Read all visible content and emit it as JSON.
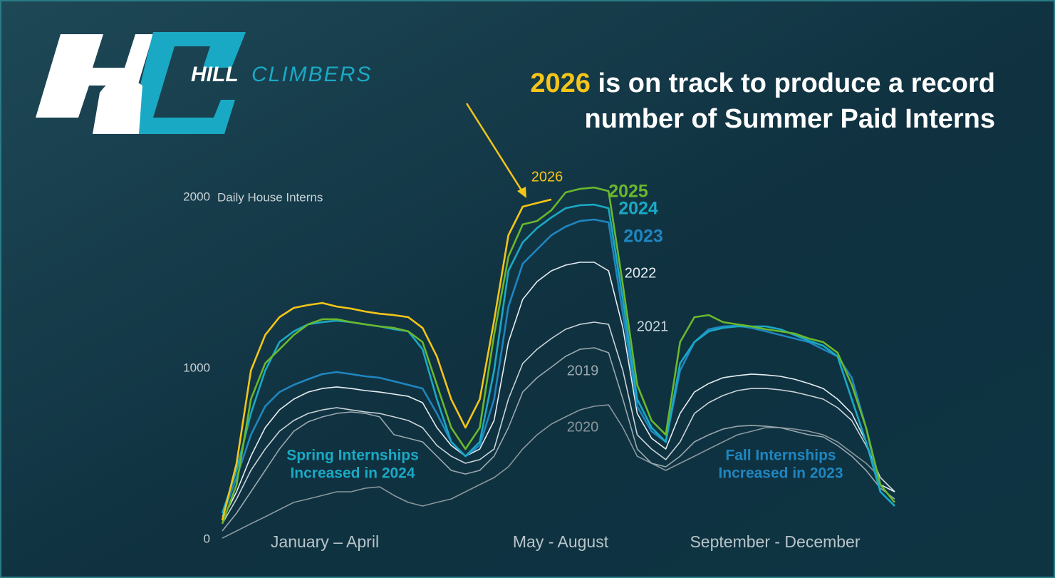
{
  "brand": {
    "hill": "HILL",
    "climbers": "CLIMBERS"
  },
  "chart_data": {
    "type": "line",
    "title": {
      "highlight": "2026",
      "line1": "is on track to produce a record",
      "line2": "number of Summer Paid Interns"
    },
    "y_label": "Daily House Interns",
    "ylim": [
      0,
      2000
    ],
    "yticks": [
      0,
      1000,
      2000
    ],
    "grid": false,
    "period_labels": [
      "January – April",
      "May - August",
      "September - December"
    ],
    "annotations": [
      {
        "lines": [
          "Spring Internships",
          "Increased in 2024"
        ],
        "color": "#1aa9c4"
      },
      {
        "lines": [
          "Fall Internships",
          "Increased in 2023"
        ],
        "color": "#1f86c0"
      }
    ],
    "series": [
      {
        "name": "2020",
        "color": "#8a979d",
        "values": [
          8,
          50,
          92,
          133,
          175,
          217,
          237,
          258,
          279,
          279,
          300,
          308,
          258,
          217,
          196,
          217,
          237,
          279,
          321,
          362,
          425,
          529,
          612,
          675,
          717,
          758,
          779,
          787,
          654,
          487,
          446,
          404,
          446,
          487,
          529,
          571,
          612,
          633,
          654,
          654,
          646,
          633,
          612,
          571,
          508,
          446,
          362,
          279
        ]
      },
      {
        "name": "2019",
        "color": "#9aa8ae",
        "values": [
          50,
          154,
          279,
          404,
          529,
          633,
          688,
          717,
          737,
          746,
          737,
          717,
          613,
          592,
          571,
          487,
          404,
          383,
          404,
          487,
          654,
          862,
          946,
          1008,
          1071,
          1112,
          1121,
          1092,
          821,
          529,
          446,
          425,
          487,
          571,
          612,
          646,
          662,
          667,
          662,
          654,
          633,
          612,
          600,
          550,
          487,
          404,
          300,
          237
        ]
      },
      {
        "name": "2021",
        "color": "#c9d3d8",
        "values": [
          92,
          237,
          404,
          529,
          633,
          696,
          737,
          758,
          771,
          758,
          746,
          737,
          717,
          696,
          654,
          550,
          487,
          446,
          467,
          529,
          821,
          1029,
          1112,
          1175,
          1229,
          1258,
          1271,
          1258,
          987,
          612,
          529,
          467,
          571,
          737,
          800,
          842,
          871,
          883,
          883,
          875,
          862,
          842,
          821,
          771,
          696,
          550,
          362,
          279
        ]
      },
      {
        "name": "2022",
        "color": "#e6eef2",
        "values": [
          112,
          279,
          487,
          654,
          758,
          821,
          862,
          883,
          892,
          883,
          871,
          862,
          850,
          837,
          800,
          654,
          550,
          487,
          529,
          696,
          1154,
          1404,
          1508,
          1571,
          1604,
          1621,
          1621,
          1571,
          1237,
          737,
          592,
          529,
          737,
          862,
          912,
          946,
          958,
          967,
          962,
          954,
          937,
          912,
          883,
          821,
          737,
          571,
          321,
          279
        ]
      },
      {
        "name": "2023",
        "color": "#1f86c0",
        "values": [
          133,
          362,
          612,
          779,
          862,
          904,
          937,
          967,
          979,
          967,
          954,
          946,
          925,
          904,
          883,
          737,
          571,
          487,
          550,
          820,
          1362,
          1612,
          1696,
          1779,
          1829,
          1862,
          1871,
          1854,
          1321,
          779,
          633,
          571,
          988,
          1154,
          1229,
          1246,
          1250,
          1237,
          1217,
          1196,
          1175,
          1154,
          1112,
          1071,
          946,
          654,
          279,
          196
        ]
      },
      {
        "name": "2024",
        "color": "#1aa9c4",
        "values": [
          154,
          404,
          737,
          988,
          1154,
          1217,
          1258,
          1271,
          1279,
          1271,
          1258,
          1246,
          1229,
          1217,
          1112,
          820,
          571,
          487,
          571,
          988,
          1571,
          1737,
          1821,
          1883,
          1937,
          1954,
          1958,
          1937,
          1404,
          820,
          654,
          571,
          1030,
          1154,
          1217,
          1237,
          1246,
          1246,
          1246,
          1229,
          1196,
          1162,
          1133,
          1071,
          820,
          571,
          279,
          196
        ]
      },
      {
        "name": "2025",
        "color": "#6ab82c",
        "values": [
          92,
          320,
          820,
          1030,
          1112,
          1196,
          1258,
          1288,
          1288,
          1271,
          1258,
          1246,
          1237,
          1217,
          1154,
          904,
          654,
          529,
          654,
          1196,
          1654,
          1842,
          1862,
          1925,
          2029,
          2050,
          2058,
          2037,
          1488,
          904,
          696,
          612,
          1154,
          1300,
          1312,
          1271,
          1258,
          1246,
          1229,
          1217,
          1204,
          1175,
          1154,
          1092,
          904,
          654,
          320,
          217
        ]
      },
      {
        "name": "2026",
        "color": "#f5c518",
        "values": [
          112,
          445,
          988,
          1196,
          1300,
          1354,
          1371,
          1383,
          1362,
          1350,
          1333,
          1320,
          1312,
          1300,
          1237,
          1070,
          820,
          654,
          820,
          1280,
          1779,
          1946,
          1967,
          1988,
          null,
          null,
          null,
          null,
          null,
          null,
          null,
          null,
          null,
          null,
          null,
          null,
          null,
          null,
          null,
          null,
          null,
          null,
          null,
          null,
          null,
          null,
          null,
          null
        ]
      }
    ]
  }
}
